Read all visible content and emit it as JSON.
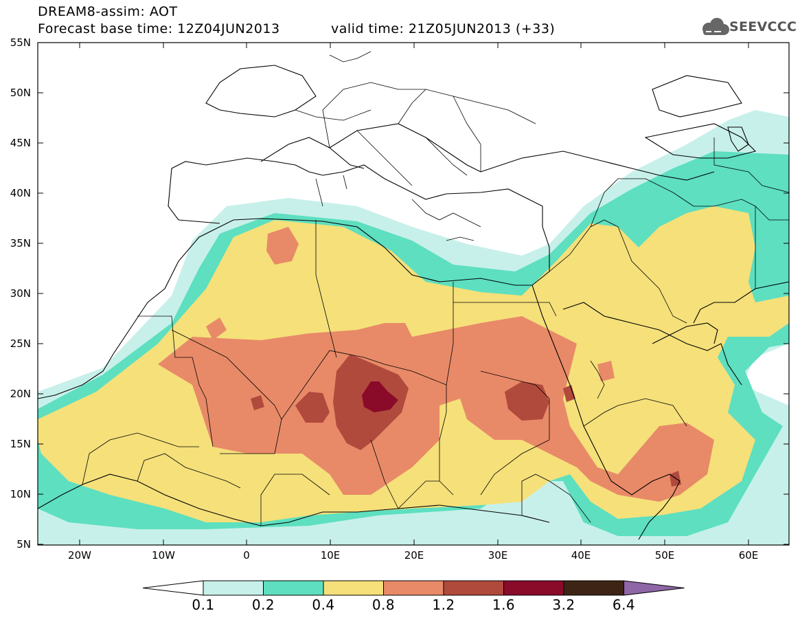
{
  "header": {
    "title_line1": "DREAM8-assim: AOT",
    "title_line2": "Forecast base time: 12Z04JUN2013",
    "valid_time": "valid time: 21Z05JUN2013 (+33)",
    "logo_text": "SEEVCCC"
  },
  "map": {
    "lat_labels": [
      "55N",
      "50N",
      "45N",
      "40N",
      "35N",
      "30N",
      "25N",
      "20N",
      "15N",
      "10N",
      "5N"
    ],
    "lon_labels": [
      "20W",
      "10W",
      "0",
      "10E",
      "20E",
      "30E",
      "40E",
      "50E",
      "60E"
    ]
  },
  "colorbar": {
    "labels": [
      "0.1",
      "0.2",
      "0.4",
      "0.8",
      "1.2",
      "1.6",
      "3.2",
      "6.4"
    ],
    "colors": [
      "#c8f0ea",
      "#5ddfc0",
      "#f5e07a",
      "#e88a68",
      "#b04a3c",
      "#8a0a2a",
      "#3e2414",
      "#8f66a6"
    ],
    "under_color": "#ffffff"
  }
}
